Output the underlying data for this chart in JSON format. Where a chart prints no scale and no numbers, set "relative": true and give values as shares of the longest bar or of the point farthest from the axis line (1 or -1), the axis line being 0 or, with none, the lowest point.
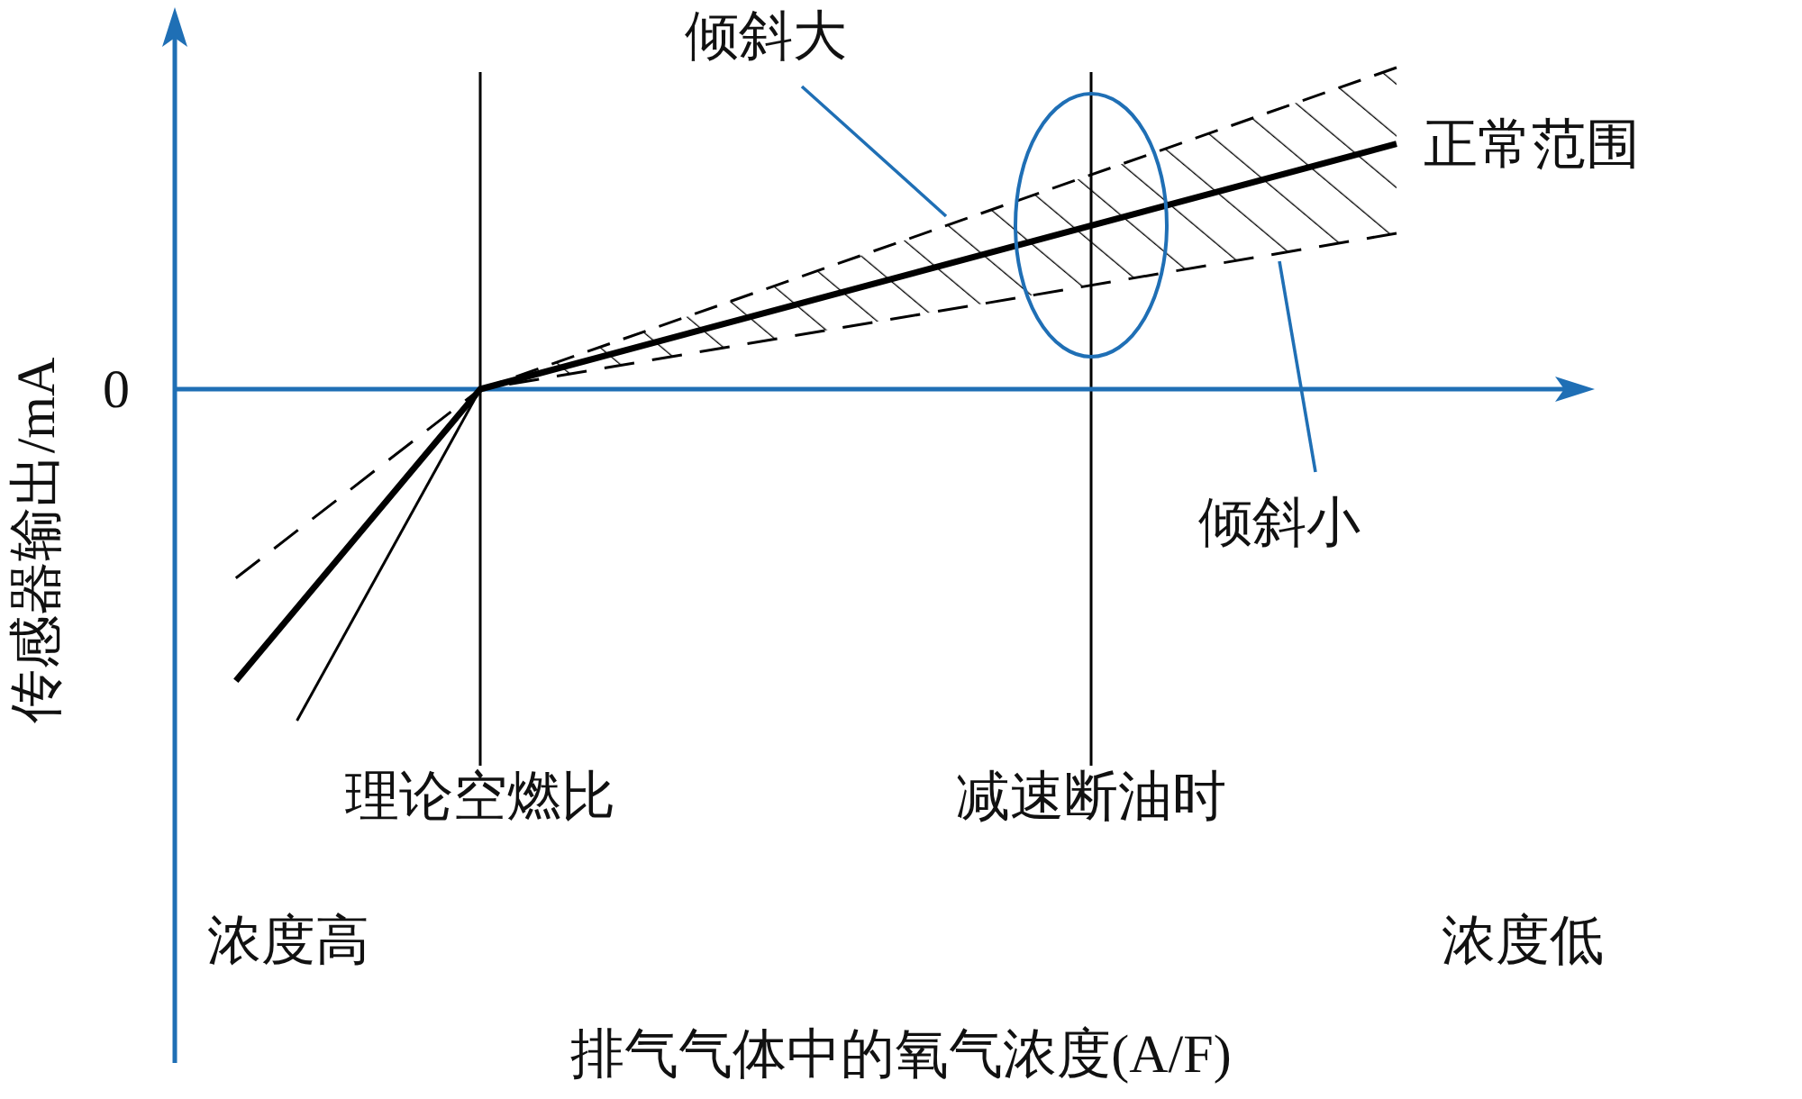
{
  "chart_data": {
    "type": "line",
    "relative": true,
    "ylabel": "传感器输出/mA",
    "categories": [
      null,
      null,
      null,
      null,
      null,
      "理论空燃比",
      null,
      null,
      null,
      null,
      null,
      null,
      null,
      null,
      null,
      "减速断油时",
      null,
      null,
      null,
      null,
      null
    ],
    "series": [
      {
        "color": "#000000",
        "line_style": "solid",
        "values": [
          null,
          -0.88,
          null,
          null,
          null,
          0,
          null,
          null,
          null,
          null,
          null,
          null,
          null,
          null,
          null,
          null,
          null,
          null,
          null,
          null,
          0.74
        ],
        "lower": [
          null,
          null,
          null,
          null,
          null,
          0,
          null,
          null,
          null,
          null,
          null,
          null,
          null,
          null,
          null,
          null,
          null,
          null,
          null,
          null,
          0.47
        ],
        "upper": [
          null,
          null,
          null,
          null,
          null,
          0,
          null,
          null,
          null,
          null,
          null,
          null,
          null,
          null,
          null,
          null,
          null,
          null,
          null,
          null,
          0.97
        ]
      },
      {
        "color": "#000000",
        "line_style": "solid",
        "values": [
          null,
          null,
          -1,
          null,
          null,
          0,
          null,
          null,
          null,
          null,
          null,
          null,
          null,
          null,
          null,
          null,
          null,
          null,
          null,
          null,
          null
        ]
      },
      {
        "color": "#000000",
        "line_style": "dashed",
        "values": [
          null,
          null,
          null,
          null,
          null,
          0,
          null,
          null,
          null,
          null,
          null,
          null,
          null,
          null,
          null,
          null,
          null,
          null,
          null,
          null,
          0.97
        ]
      },
      {
        "color": "#000000",
        "line_style": "dashed",
        "values": [
          null,
          -0.57,
          null,
          null,
          null,
          0,
          null,
          null,
          null,
          null,
          null,
          null,
          null,
          null,
          null,
          null,
          null,
          null,
          null,
          null,
          0.47
        ]
      }
    ],
    "ref_lines": [
      {
        "axis": "x",
        "value": "理论空燃比",
        "color": "#000000"
      },
      {
        "axis": "x",
        "value": "减速断油时",
        "color": "#000000"
      },
      {
        "axis": "y",
        "value": 0,
        "label": "0",
        "color": "#1f6fb5"
      }
    ],
    "annotations": [
      "倾斜大",
      "正常范围",
      "倾斜小",
      "浓度高",
      "浓度低",
      "排气气体中的氧气浓度(A/F)"
    ]
  }
}
